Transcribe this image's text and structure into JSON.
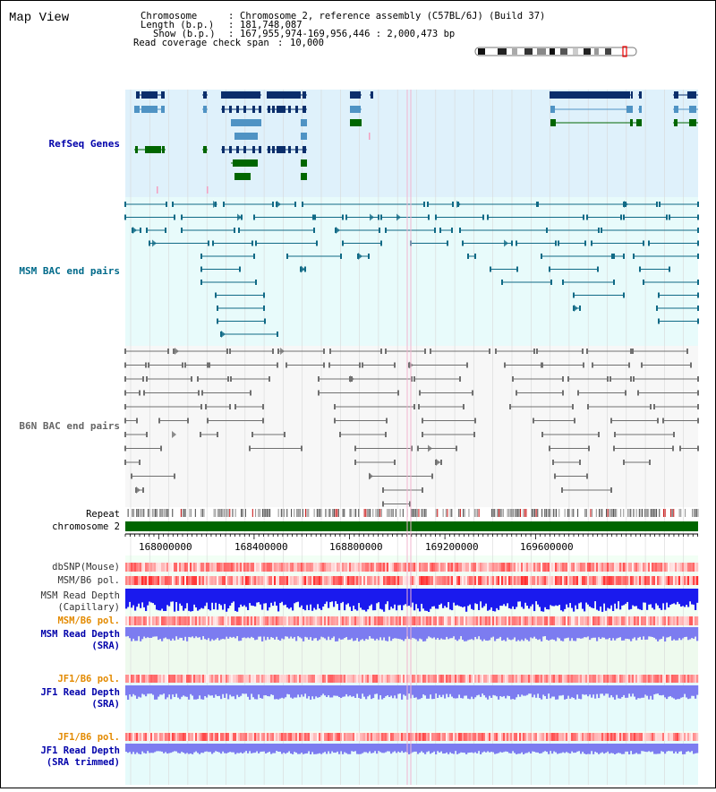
{
  "title": "Map View",
  "info": {
    "chromosome_label": "Chromosome",
    "chromosome_value": "Chromosome 2, reference assembly (C57BL/6J) (Build 37)",
    "length_label": "Length (b.p.)",
    "length_value": "181,748,087",
    "show_label": "Show (b.p.)",
    "show_value": "167,955,974-169,956,446 : 2,000,473 bp",
    "span_label": "Read coverage check span",
    "span_value": "10,000"
  },
  "tracks": {
    "refseq": "RefSeq Genes",
    "msm_bac": "MSM BAC end pairs",
    "b6n_bac": "B6N BAC end pairs",
    "repeat": "Repeat",
    "chromosome": "chromosome 2",
    "dbsnp": "dbSNP(Mouse)",
    "msm_b6_pol_1": "MSM/B6 pol.",
    "msm_read_depth_cap_1": "MSM Read Depth",
    "msm_read_depth_cap_2": "(Capillary)",
    "msm_b6_pol_2": "MSM/B6 pol.",
    "msm_read_depth_sra_1": "MSM Read Depth",
    "msm_read_depth_sra_2": "(SRA)",
    "jf1_b6_pol_1": "JF1/B6 pol.",
    "jf1_read_depth_sra_1": "JF1 Read Depth",
    "jf1_read_depth_sra_2": "(SRA)",
    "jf1_b6_pol_2": "JF1/B6 pol.",
    "jf1_read_depth_trim_1": "JF1 Read Depth",
    "jf1_read_depth_trim_2": "(SRA trimmed)"
  },
  "axis": {
    "ticks": [
      "168000000",
      "168400000",
      "168800000",
      "169200000",
      "169600000"
    ]
  },
  "colors": {
    "refseq_bg": "#dff1fb",
    "msm_bg": "#e8fbfb",
    "gene_dark": "#0a2e6b",
    "gene_mid": "#4f93c4",
    "gene_green": "#006600",
    "msm_line": "#106a86",
    "b6n_line": "#707070",
    "chromosome": "#006600",
    "label_blue": "#0000aa",
    "label_teal": "#006a8a",
    "label_gray": "#666666",
    "label_orange": "#e38a00",
    "depth_blue": "#1a1aee",
    "depth_lav": "#7c7cf0"
  }
}
